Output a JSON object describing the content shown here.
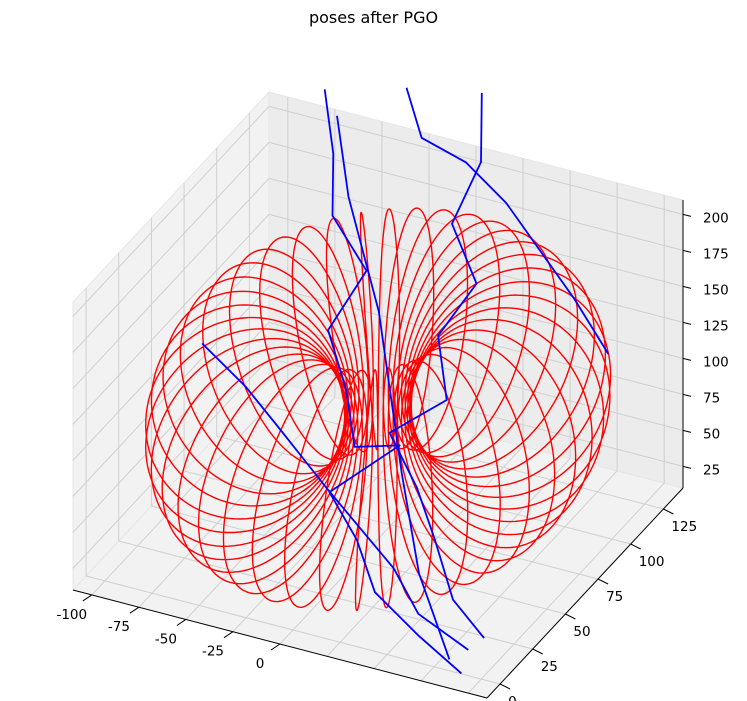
{
  "chart_data": {
    "type": "line3d",
    "title": "poses after PGO",
    "projection": "3d",
    "grid": true,
    "x_ticks": [
      -100,
      -75,
      -50,
      -25,
      0
    ],
    "y_ticks": [
      0,
      25,
      50,
      75,
      100,
      125
    ],
    "z_ticks": [
      25,
      50,
      75,
      100,
      125,
      150,
      175,
      200
    ],
    "xlim": [
      -110,
      110
    ],
    "ylim": [
      -10,
      140
    ],
    "zlim": [
      10,
      210
    ],
    "series": [
      {
        "color": "#ff0000",
        "shape": "torus",
        "center": [
          0,
          65,
          100
        ],
        "major_radius": 60,
        "minor_radius": 45,
        "turns": 40
      },
      {
        "color": "#0000ff",
        "shape": "random-walk",
        "samples": [
          [
            -60,
            120,
            230
          ],
          [
            -40,
            100,
            200
          ],
          [
            -10,
            80,
            150
          ],
          [
            10,
            60,
            120
          ],
          [
            30,
            40,
            90
          ],
          [
            60,
            10,
            60
          ],
          [
            90,
            -10,
            30
          ]
        ]
      }
    ]
  }
}
